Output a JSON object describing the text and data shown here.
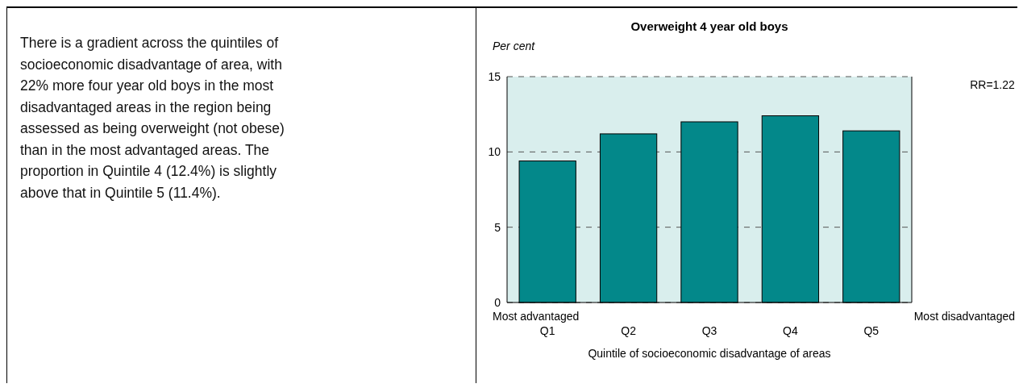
{
  "chart_data": [
    {
      "type": "other",
      "annotations": [
        "There is a gradient across the quintiles of socioeconomic disadvantage of area, with 22% more four year old boys in the most disadvantaged areas in the region being assessed as being overweight (not obese) than in the most advantaged areas.  The proportion in Quintile 4 (12.4%) is slightly above that in Quintile 5 (11.4%)."
      ]
    },
    {
      "type": "bar",
      "title": "Overweight 4 year old boys",
      "ylabel": "Per cent",
      "xlabel": "Quintile of socioeconomic disadvantage of areas",
      "categories": [
        "Q1",
        "Q2",
        "Q3",
        "Q4",
        "Q5"
      ],
      "values": [
        9.4,
        11.2,
        12.0,
        12.4,
        11.4
      ],
      "color": "#03888a",
      "ylim": [
        0,
        15
      ],
      "yticks": [
        0,
        5,
        10,
        15
      ],
      "grid": "y",
      "annotations": [
        "Most advantaged",
        "Most disadvantaged",
        "RR=1.22"
      ]
    }
  ]
}
